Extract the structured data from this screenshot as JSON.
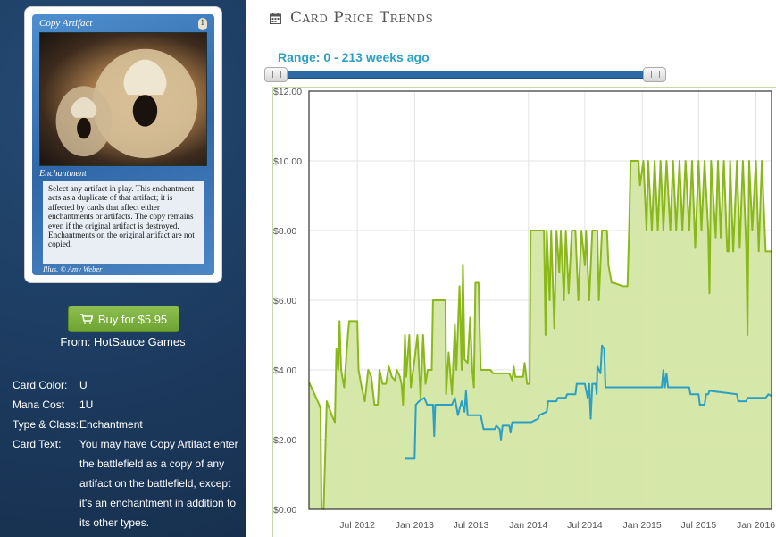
{
  "card": {
    "title": "Copy Artifact",
    "cost": "1",
    "type_line": "Enchantment",
    "rules_text": "Select any artifact in play. This enchantment acts as a duplicate of that artifact; it is affected by cards that affect either enchantments or artifacts. The copy remains even if the original artifact is destroyed. Enchantments on the original artifact are not copied.",
    "illustrator": "Illus. © Amy Weber"
  },
  "buy": {
    "label": "Buy for $5.95",
    "icon": "shopping-cart-icon"
  },
  "seller": {
    "text": "From: HotSauce Games"
  },
  "details": [
    {
      "label": "Card Color:",
      "value": "U"
    },
    {
      "label": "Mana Cost",
      "value": "1U"
    },
    {
      "label": "Type & Class:",
      "value": "Enchantment"
    },
    {
      "label": "Card Text:",
      "value": "You may have Copy Artifact enter the battlefield as a copy of any artifact on the battlefield, except it's an enchantment in addition to its other types."
    }
  ],
  "price_trends": {
    "title": "Card Price Trends",
    "icon": "calendar-icon",
    "range_label": "Range: 0 - 213 weeks ago"
  },
  "colors": {
    "sidebar_bg": "#1c3a5e",
    "green_series": "#8ab81a",
    "green_fill": "#d4e6a5",
    "blue_series": "#2b9fc4",
    "accent_blue": "#2e9fc5"
  },
  "chart_data": {
    "type": "line",
    "ylim": [
      0,
      12
    ],
    "y_ticks": [
      "$0.00",
      "$2.00",
      "$4.00",
      "$6.00",
      "$8.00",
      "$10.00",
      "$12.00"
    ],
    "x_ticks": [
      "Jul 2012",
      "Jan 2013",
      "Jul 2013",
      "Jan 2014",
      "Jul 2014",
      "Jan 2015",
      "Jul 2015",
      "Jan 2016"
    ],
    "x_range": [
      "2012-01-28",
      "2016-02-20"
    ],
    "grid": true,
    "series": [
      {
        "points": [
          [
            "2012-01-28",
            3.65
          ],
          [
            "2012-03-01",
            3.0
          ],
          [
            "2012-03-05",
            2.9
          ],
          [
            "2012-03-08",
            0.05
          ],
          [
            "2012-03-15",
            0.0
          ],
          [
            "2012-03-25",
            3.1
          ],
          [
            "2012-04-10",
            2.7
          ],
          [
            "2012-04-20",
            2.5
          ],
          [
            "2012-04-25",
            4.6
          ],
          [
            "2012-05-01",
            4.0
          ],
          [
            "2012-05-05",
            5.4
          ],
          [
            "2012-05-10",
            4.0
          ],
          [
            "2012-05-20",
            3.5
          ],
          [
            "2012-06-01",
            5.0
          ],
          [
            "2012-06-05",
            5.4
          ],
          [
            "2012-07-01",
            5.4
          ],
          [
            "2012-07-05",
            4.0
          ],
          [
            "2012-07-15",
            3.5
          ],
          [
            "2012-07-25",
            3.1
          ],
          [
            "2012-08-05",
            4.0
          ],
          [
            "2012-08-15",
            3.8
          ],
          [
            "2012-08-25",
            3.0
          ],
          [
            "2012-09-05",
            3.0
          ],
          [
            "2012-09-10",
            4.0
          ],
          [
            "2012-09-20",
            3.6
          ],
          [
            "2012-10-01",
            3.6
          ],
          [
            "2012-10-10",
            4.1
          ],
          [
            "2012-10-20",
            3.8
          ],
          [
            "2012-10-30",
            3.7
          ],
          [
            "2012-11-05",
            4.0
          ],
          [
            "2012-11-15",
            3.8
          ],
          [
            "2012-11-20",
            3.6
          ],
          [
            "2012-11-25",
            3.0
          ],
          [
            "2012-12-01",
            5.0
          ],
          [
            "2012-12-05",
            3.8
          ],
          [
            "2012-12-15",
            5.0
          ],
          [
            "2012-12-20",
            3.5
          ],
          [
            "2013-01-01",
            4.3
          ],
          [
            "2013-01-10",
            5.0
          ],
          [
            "2013-01-20",
            3.2
          ],
          [
            "2013-01-28",
            5.0
          ],
          [
            "2013-02-05",
            3.6
          ],
          [
            "2013-02-12",
            4.0
          ],
          [
            "2013-02-25",
            4.0
          ],
          [
            "2013-03-01",
            6.0
          ],
          [
            "2013-04-10",
            6.0
          ],
          [
            "2013-04-12",
            3.3
          ],
          [
            "2013-04-20",
            4.5
          ],
          [
            "2013-05-01",
            3.3
          ],
          [
            "2013-05-10",
            5.3
          ],
          [
            "2013-05-15",
            4.0
          ],
          [
            "2013-05-25",
            6.4
          ],
          [
            "2013-06-01",
            4.0
          ],
          [
            "2013-06-05",
            7.0
          ],
          [
            "2013-06-10",
            4.3
          ],
          [
            "2013-06-20",
            4.2
          ],
          [
            "2013-06-28",
            5.5
          ],
          [
            "2013-07-05",
            4.0
          ],
          [
            "2013-07-10",
            3.5
          ],
          [
            "2013-07-15",
            6.5
          ],
          [
            "2013-07-25",
            6.5
          ],
          [
            "2013-08-01",
            4.0
          ],
          [
            "2013-09-01",
            4.0
          ],
          [
            "2013-09-10",
            3.9
          ],
          [
            "2013-10-01",
            3.9
          ],
          [
            "2013-11-01",
            3.9
          ],
          [
            "2013-11-10",
            3.7
          ],
          [
            "2013-11-15",
            4.1
          ],
          [
            "2013-11-20",
            3.8
          ],
          [
            "2013-12-15",
            3.8
          ],
          [
            "2013-12-20",
            4.2
          ],
          [
            "2013-12-28",
            3.6
          ],
          [
            "2014-01-05",
            3.6
          ],
          [
            "2014-01-08",
            8.0
          ],
          [
            "2014-02-20",
            8.0
          ],
          [
            "2014-02-25",
            5.0
          ],
          [
            "2014-03-01",
            8.0
          ],
          [
            "2014-03-10",
            6.0
          ],
          [
            "2014-03-15",
            8.0
          ],
          [
            "2014-03-25",
            5.2
          ],
          [
            "2014-04-01",
            8.0
          ],
          [
            "2014-04-10",
            6.8
          ],
          [
            "2014-04-15",
            8.0
          ],
          [
            "2014-04-25",
            6.0
          ],
          [
            "2014-05-01",
            8.0
          ],
          [
            "2014-05-10",
            6.2
          ],
          [
            "2014-05-20",
            8.0
          ],
          [
            "2014-06-01",
            8.0
          ],
          [
            "2014-06-10",
            6.0
          ],
          [
            "2014-06-20",
            8.0
          ],
          [
            "2014-07-01",
            7.0
          ],
          [
            "2014-07-05",
            8.0
          ],
          [
            "2014-07-15",
            6.0
          ],
          [
            "2014-07-25",
            8.0
          ],
          [
            "2014-08-10",
            8.0
          ],
          [
            "2014-08-15",
            6.0
          ],
          [
            "2014-08-25",
            8.0
          ],
          [
            "2014-09-10",
            8.0
          ],
          [
            "2014-09-15",
            7.0
          ],
          [
            "2014-09-25",
            6.5
          ],
          [
            "2014-10-01",
            6.5
          ],
          [
            "2014-11-01",
            6.4
          ],
          [
            "2014-11-15",
            6.4
          ],
          [
            "2014-11-20",
            8.0
          ],
          [
            "2014-11-25",
            10.0
          ],
          [
            "2014-12-20",
            10.0
          ],
          [
            "2014-12-25",
            9.3
          ],
          [
            "2015-01-05",
            10.0
          ],
          [
            "2015-01-15",
            8.0
          ],
          [
            "2015-01-20",
            10.0
          ],
          [
            "2015-02-01",
            8.0
          ],
          [
            "2015-02-10",
            10.0
          ],
          [
            "2015-02-20",
            8.0
          ],
          [
            "2015-03-01",
            10.0
          ],
          [
            "2015-03-10",
            8.0
          ],
          [
            "2015-03-20",
            10.0
          ],
          [
            "2015-04-01",
            8.0
          ],
          [
            "2015-04-10",
            10.0
          ],
          [
            "2015-04-20",
            8.0
          ],
          [
            "2015-05-01",
            10.0
          ],
          [
            "2015-05-10",
            8.0
          ],
          [
            "2015-05-20",
            10.0
          ],
          [
            "2015-06-01",
            8.0
          ],
          [
            "2015-06-10",
            10.0
          ],
          [
            "2015-06-20",
            7.5
          ],
          [
            "2015-07-01",
            10.0
          ],
          [
            "2015-07-10",
            8.0
          ],
          [
            "2015-07-20",
            10.0
          ],
          [
            "2015-08-01",
            8.0
          ],
          [
            "2015-08-05",
            6.2
          ],
          [
            "2015-08-10",
            10.0
          ],
          [
            "2015-08-25",
            7.8
          ],
          [
            "2015-09-01",
            10.0
          ],
          [
            "2015-09-10",
            7.8
          ],
          [
            "2015-09-20",
            10.0
          ],
          [
            "2015-10-01",
            7.4
          ],
          [
            "2015-10-05",
            7.4
          ],
          [
            "2015-10-10",
            10.0
          ],
          [
            "2015-10-20",
            7.4
          ],
          [
            "2015-11-01",
            10.0
          ],
          [
            "2015-11-10",
            7.5
          ],
          [
            "2015-11-20",
            10.0
          ],
          [
            "2015-12-01",
            7.5
          ],
          [
            "2015-12-05",
            5.0
          ],
          [
            "2015-12-10",
            10.0
          ],
          [
            "2015-12-20",
            8.0
          ],
          [
            "2016-01-01",
            10.0
          ],
          [
            "2016-01-10",
            7.4
          ],
          [
            "2016-01-20",
            10.0
          ],
          [
            "2016-02-01",
            7.4
          ],
          [
            "2016-02-20",
            7.4
          ]
        ]
      },
      {
        "points": [
          [
            "2012-12-01",
            1.45
          ],
          [
            "2013-01-01",
            1.45
          ],
          [
            "2013-01-05",
            3.0
          ],
          [
            "2013-01-15",
            3.1
          ],
          [
            "2013-02-01",
            3.2
          ],
          [
            "2013-02-10",
            3.0
          ],
          [
            "2013-03-01",
            3.0
          ],
          [
            "2013-03-05",
            2.1
          ],
          [
            "2013-03-08",
            3.0
          ],
          [
            "2013-05-01",
            3.0
          ],
          [
            "2013-05-10",
            3.2
          ],
          [
            "2013-05-20",
            2.7
          ],
          [
            "2013-06-01",
            3.1
          ],
          [
            "2013-06-10",
            2.8
          ],
          [
            "2013-06-15",
            3.4
          ],
          [
            "2013-06-20",
            2.7
          ],
          [
            "2013-08-01",
            2.7
          ],
          [
            "2013-08-10",
            2.3
          ],
          [
            "2013-09-15",
            2.3
          ],
          [
            "2013-09-20",
            2.4
          ],
          [
            "2013-10-01",
            2.3
          ],
          [
            "2013-10-05",
            2.0
          ],
          [
            "2013-10-10",
            2.4
          ],
          [
            "2013-11-01",
            2.4
          ],
          [
            "2013-11-05",
            2.2
          ],
          [
            "2013-11-10",
            2.5
          ],
          [
            "2014-01-01",
            2.5
          ],
          [
            "2014-01-10",
            2.5
          ],
          [
            "2014-02-01",
            2.6
          ],
          [
            "2014-02-05",
            2.7
          ],
          [
            "2014-03-01",
            2.8
          ],
          [
            "2014-03-05",
            3.1
          ],
          [
            "2014-04-01",
            3.1
          ],
          [
            "2014-04-05",
            3.2
          ],
          [
            "2014-05-01",
            3.2
          ],
          [
            "2014-05-05",
            3.3
          ],
          [
            "2014-06-01",
            3.3
          ],
          [
            "2014-06-05",
            3.6
          ],
          [
            "2014-07-01",
            3.6
          ],
          [
            "2014-07-10",
            3.2
          ],
          [
            "2014-07-15",
            3.6
          ],
          [
            "2014-07-20",
            2.6
          ],
          [
            "2014-07-25",
            3.6
          ],
          [
            "2014-08-05",
            3.6
          ],
          [
            "2014-08-08",
            3.3
          ],
          [
            "2014-08-10",
            4.1
          ],
          [
            "2014-08-20",
            3.9
          ],
          [
            "2014-08-25",
            4.7
          ],
          [
            "2014-09-01",
            4.6
          ],
          [
            "2014-09-05",
            3.5
          ],
          [
            "2014-12-01",
            3.5
          ],
          [
            "2014-12-05",
            3.5
          ],
          [
            "2015-03-01",
            3.5
          ],
          [
            "2015-03-05",
            3.5
          ],
          [
            "2015-03-10",
            4.0
          ],
          [
            "2015-03-15",
            3.5
          ],
          [
            "2015-03-20",
            3.9
          ],
          [
            "2015-03-25",
            3.5
          ],
          [
            "2015-06-01",
            3.5
          ],
          [
            "2015-06-05",
            3.3
          ],
          [
            "2015-07-01",
            3.3
          ],
          [
            "2015-07-05",
            3.0
          ],
          [
            "2015-07-20",
            3.0
          ],
          [
            "2015-07-25",
            3.3
          ],
          [
            "2015-08-01",
            3.3
          ],
          [
            "2015-08-05",
            3.4
          ],
          [
            "2015-11-01",
            3.3
          ],
          [
            "2015-11-05",
            3.1
          ],
          [
            "2015-12-01",
            3.1
          ],
          [
            "2015-12-05",
            3.2
          ],
          [
            "2016-01-01",
            3.2
          ],
          [
            "2016-01-10",
            3.2
          ],
          [
            "2016-02-01",
            3.2
          ],
          [
            "2016-02-10",
            3.3
          ],
          [
            "2016-02-20",
            3.25
          ]
        ]
      }
    ]
  }
}
